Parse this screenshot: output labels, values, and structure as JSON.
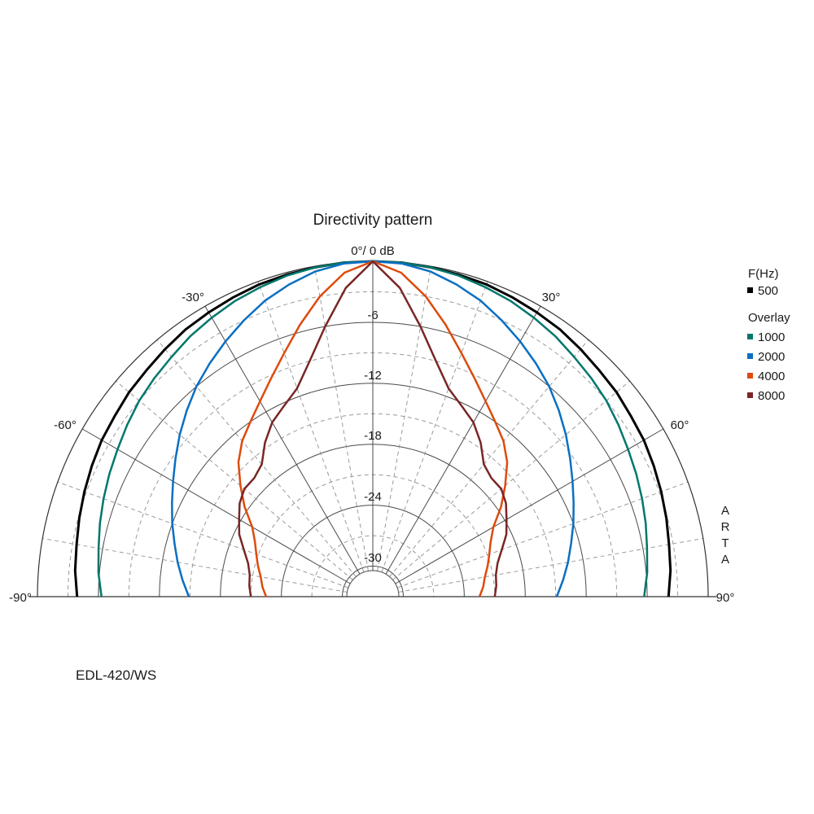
{
  "chart_data": {
    "type": "polar",
    "title": "Directivity pattern",
    "model_label": "EDL-420/WS",
    "brand_vertical": "ARTA",
    "top_label": "0°/ 0 dB",
    "angle_labels": [
      "-90°",
      "-60°",
      "-30°",
      "30°",
      "60°",
      "90°"
    ],
    "angle_label_values": [
      -90,
      -60,
      -30,
      30,
      60,
      90
    ],
    "radial_labels": [
      "-6",
      "-12",
      "-18",
      "-24",
      "-30"
    ],
    "radial_label_values": [
      -6,
      -12,
      -18,
      -24,
      -30
    ],
    "r_range_db": [
      -33,
      0
    ],
    "theta_range_deg": [
      -90,
      90
    ],
    "grid": true,
    "legend": {
      "header": "F(Hz)",
      "overlay_header": "Overlay",
      "placement": "right",
      "entries": [
        {
          "label": "500",
          "color": "#000000"
        },
        {
          "label": "1000",
          "color": "#00776b"
        },
        {
          "label": "2000",
          "color": "#0a6fc2"
        },
        {
          "label": "4000",
          "color": "#dd4b0c"
        },
        {
          "label": "8000",
          "color": "#7a2626"
        }
      ]
    },
    "theta_deg": [
      0,
      5,
      10,
      15,
      20,
      25,
      30,
      35,
      40,
      45,
      50,
      55,
      60,
      65,
      70,
      75,
      80,
      85,
      90
    ],
    "series": [
      {
        "name": "500",
        "color": "#000000",
        "width": 3,
        "values": [
          0,
          0,
          -0.1,
          -0.2,
          -0.3,
          -0.5,
          -0.7,
          -0.9,
          -1.2,
          -1.5,
          -1.7,
          -2.0,
          -2.2,
          -2.5,
          -2.8,
          -3.1,
          -3.4,
          -3.6,
          -3.9
        ]
      },
      {
        "name": "1000",
        "color": "#00776b",
        "width": 2.5,
        "values": [
          0,
          0,
          -0.1,
          -0.3,
          -0.6,
          -0.9,
          -1.3,
          -1.7,
          -2.2,
          -2.6,
          -3.0,
          -3.5,
          -4.0,
          -4.4,
          -4.8,
          -5.2,
          -5.6,
          -5.9,
          -6.3
        ]
      },
      {
        "name": "2000",
        "color": "#0a6fc2",
        "width": 2.5,
        "values": [
          0,
          -0.1,
          -0.5,
          -1.2,
          -2.0,
          -3.0,
          -4.0,
          -5.0,
          -6.0,
          -7.1,
          -8.2,
          -9.3,
          -10.3,
          -11.2,
          -12.0,
          -12.8,
          -13.5,
          -14.2,
          -14.9
        ]
      },
      {
        "name": "4000",
        "color": "#dd4b0c",
        "width": 2.5,
        "values": [
          0,
          -1.0,
          -3.0,
          -5.3,
          -7.5,
          -9.3,
          -10.8,
          -12.0,
          -13.0,
          -14.3,
          -16.0,
          -17.6,
          -19.3,
          -20.2,
          -20.8,
          -21.3,
          -21.8,
          -22.1,
          -22.5
        ]
      },
      {
        "name": "8000",
        "color": "#7a2626",
        "width": 2.5,
        "values": [
          0,
          -2.5,
          -6.0,
          -9.0,
          -11.2,
          -12.3,
          -13.2,
          -14.5,
          -16.0,
          -16.5,
          -16.5,
          -17.0,
          -17.8,
          -18.5,
          -19.5,
          -20.3,
          -20.7,
          -20.8,
          -21.0
        ]
      }
    ]
  }
}
